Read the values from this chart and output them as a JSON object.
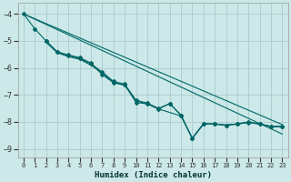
{
  "xlabel": "Humidex (Indice chaleur)",
  "background_color": "#cce8e8",
  "grid_color": "#aacccc",
  "line_color": "#006666",
  "xlim": [
    -0.5,
    23.5
  ],
  "ylim": [
    -9.3,
    -3.6
  ],
  "yticks": [
    -9,
    -8,
    -7,
    -6,
    -5,
    -4
  ],
  "xticks": [
    0,
    1,
    2,
    3,
    4,
    5,
    6,
    7,
    8,
    9,
    10,
    11,
    12,
    13,
    14,
    15,
    16,
    17,
    18,
    19,
    20,
    21,
    22,
    23
  ],
  "series": [
    {
      "x": [
        0,
        1,
        2,
        3,
        4,
        5,
        6,
        7,
        8,
        9,
        10,
        11,
        12,
        13,
        14,
        15,
        16,
        17,
        18,
        19,
        20,
        21,
        22,
        23
      ],
      "y": [
        -4.0,
        -4.55,
        -5.0,
        -5.4,
        -5.52,
        -5.62,
        -5.82,
        -6.25,
        -6.55,
        -6.62,
        -7.28,
        -7.33,
        -7.52,
        -7.32,
        -7.75,
        -8.62,
        -8.08,
        -8.08,
        -8.12,
        -8.08,
        -8.02,
        -8.08,
        -8.17,
        -8.18
      ],
      "marker": "D",
      "markersize": 2.0
    },
    {
      "x": [
        0,
        23
      ],
      "y": [
        -4.0,
        -8.1
      ],
      "marker": null
    },
    {
      "x": [
        0,
        23
      ],
      "y": [
        -4.0,
        -8.45
      ],
      "marker": null
    },
    {
      "x": [
        2,
        3,
        4,
        5,
        6,
        7,
        8,
        9,
        10,
        11,
        12,
        13,
        14,
        15,
        16,
        17,
        18,
        19,
        20,
        21,
        22,
        23
      ],
      "y": [
        -5.0,
        -5.42,
        -5.55,
        -5.65,
        -5.85,
        -6.15,
        -6.5,
        -6.6,
        -7.2,
        -7.3,
        -7.5,
        -7.32,
        -7.76,
        -8.6,
        -8.07,
        -8.07,
        -8.12,
        -8.07,
        -8.0,
        -8.07,
        -8.17,
        -8.17
      ],
      "marker": "D",
      "markersize": 2.0
    },
    {
      "x": [
        2,
        3,
        4,
        5,
        6,
        7,
        8,
        9,
        10,
        11,
        12,
        14,
        15,
        16,
        17,
        18,
        19,
        20,
        21,
        22,
        23
      ],
      "y": [
        -5.05,
        -5.44,
        -5.58,
        -5.68,
        -5.9,
        -6.2,
        -6.54,
        -6.65,
        -7.22,
        -7.33,
        -7.52,
        -7.78,
        -8.6,
        -8.08,
        -8.08,
        -8.12,
        -8.08,
        -8.02,
        -8.08,
        -8.17,
        -8.18
      ],
      "marker": null
    }
  ]
}
